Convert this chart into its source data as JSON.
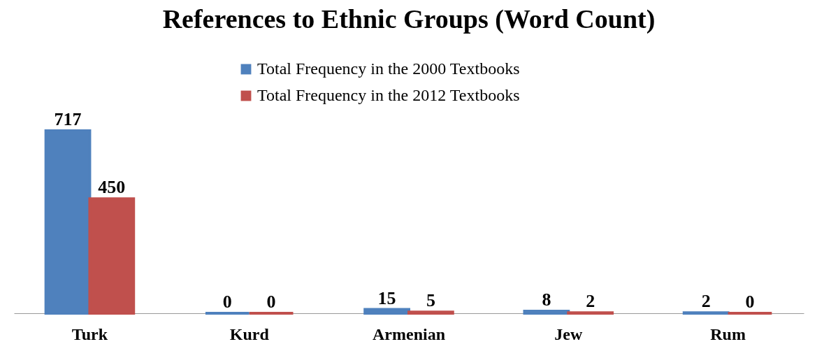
{
  "chart_data": {
    "type": "bar",
    "title": "References to Ethnic Groups (Word Count)",
    "categories": [
      "Turk",
      "Kurd",
      "Armenian",
      "Jew",
      "Rum"
    ],
    "series": [
      {
        "name": "Total Frequency in the 2000 Textbooks",
        "color": "#4f81bd",
        "values": [
          717,
          0,
          15,
          8,
          2
        ]
      },
      {
        "name": "Total Frequency in the 2012 Textbooks",
        "color": "#c0504d",
        "values": [
          450,
          0,
          5,
          2,
          0
        ]
      }
    ],
    "data_labels": true,
    "legend": "top"
  }
}
